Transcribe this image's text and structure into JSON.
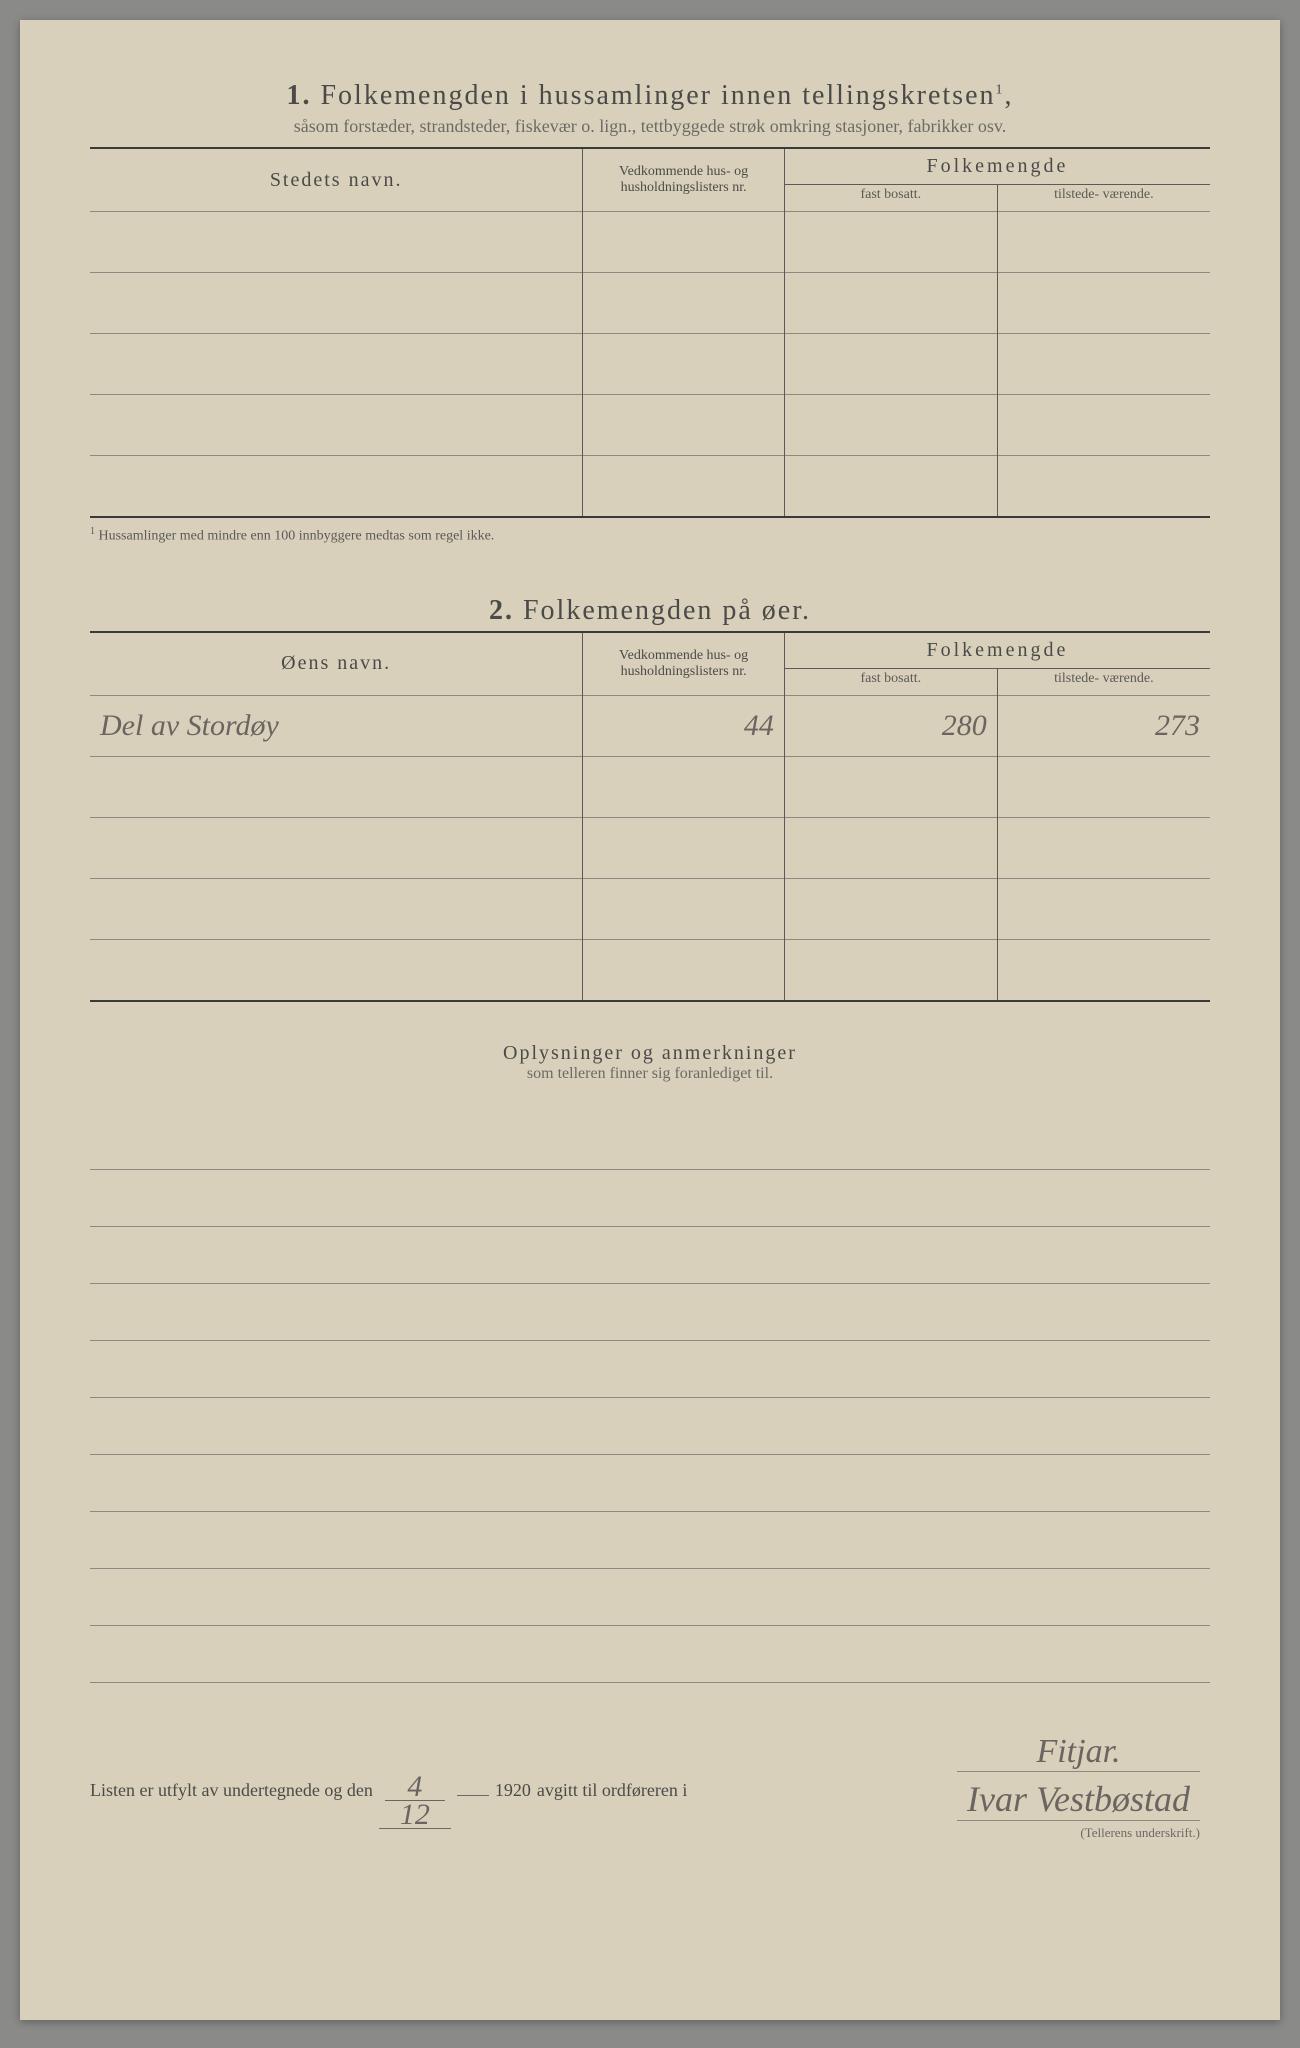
{
  "section1": {
    "number": "1.",
    "title": "Folkemengden i hussamlinger innen tellingskretsen",
    "sup": "1",
    "subtitle": "såsom forstæder, strandsteder, fiskevær o. lign., tettbyggede strøk omkring stasjoner, fabrikker osv.",
    "col_name": "Stedets navn.",
    "col_ref": "Vedkommende hus- og husholdningslisters nr.",
    "col_pop": "Folkemengde",
    "sub_fast": "fast bosatt.",
    "sub_tilst": "tilstede- værende.",
    "rows": [
      {
        "name": "",
        "ref": "",
        "fast": "",
        "tilst": ""
      },
      {
        "name": "",
        "ref": "",
        "fast": "",
        "tilst": ""
      },
      {
        "name": "",
        "ref": "",
        "fast": "",
        "tilst": ""
      },
      {
        "name": "",
        "ref": "",
        "fast": "",
        "tilst": ""
      },
      {
        "name": "",
        "ref": "",
        "fast": "",
        "tilst": ""
      }
    ],
    "footnote_sup": "1",
    "footnote": "Hussamlinger med mindre enn 100 innbyggere medtas som regel ikke."
  },
  "section2": {
    "number": "2.",
    "title": "Folkemengden på øer.",
    "col_name": "Øens navn.",
    "col_ref": "Vedkommende hus- og husholdningslisters nr.",
    "col_pop": "Folkemengde",
    "sub_fast": "fast bosatt.",
    "sub_tilst": "tilstede- værende.",
    "rows": [
      {
        "name": "Del av Stordøy",
        "ref": "44",
        "fast": "280",
        "tilst": "273"
      },
      {
        "name": "",
        "ref": "",
        "fast": "",
        "tilst": ""
      },
      {
        "name": "",
        "ref": "",
        "fast": "",
        "tilst": ""
      },
      {
        "name": "",
        "ref": "",
        "fast": "",
        "tilst": ""
      },
      {
        "name": "",
        "ref": "",
        "fast": "",
        "tilst": ""
      }
    ]
  },
  "remarks": {
    "title": "Oplysninger og anmerkninger",
    "subtitle": "som telleren finner sig foranlediget til.",
    "line_count": 10
  },
  "signature": {
    "prefix": "Listen er utfylt av undertegnede og den",
    "date_top": "4",
    "date_bottom": "12",
    "year": "1920",
    "mid": "avgitt til ordføreren i",
    "place": "Fitjar.",
    "name": "Ivar Vestbøstad",
    "caption": "(Tellerens underskrift.)"
  },
  "colors": {
    "paper": "#d9d0bb",
    "ink": "#4a4a48",
    "pencil": "#6a6560",
    "rule": "#5a5a58"
  }
}
